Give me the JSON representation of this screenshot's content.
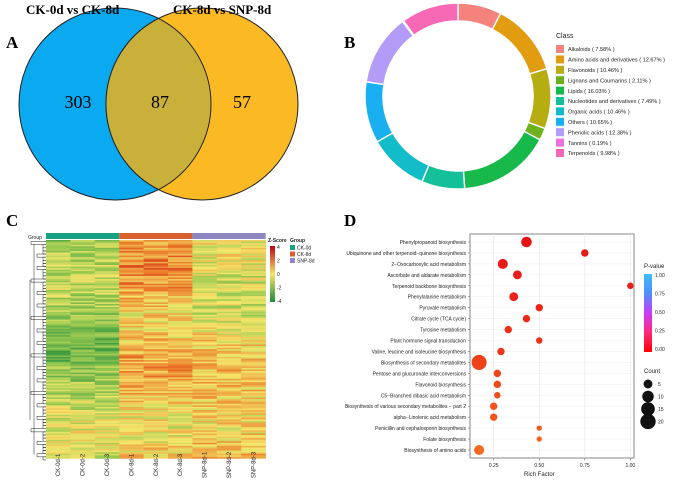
{
  "panels": {
    "a": "A",
    "b": "B",
    "c": "C",
    "d": "D"
  },
  "chart_data": [
    {
      "type": "venn",
      "sets": [
        {
          "name": "CK-0d vs CK-8d",
          "only": 303,
          "color": "#0aa9f0"
        },
        {
          "name": "CK-8d vs SNP-8d",
          "only": 57,
          "color": "#fbb924"
        }
      ],
      "intersection": 87,
      "intersection_color": "#c9b03a"
    },
    {
      "type": "pie",
      "style": "donut",
      "legend_title": "Class",
      "slices": [
        {
          "label": "Alkaloids ( 7.58% )",
          "value": 7.58,
          "color": "#f4837d"
        },
        {
          "label": "Amino acids and derivatives ( 12.67% )",
          "value": 12.67,
          "color": "#e29c10"
        },
        {
          "label": "Flavonoids ( 10.46% )",
          "value": 10.46,
          "color": "#b7ac11"
        },
        {
          "label": "Lignans and Coumarins ( 2.11% )",
          "value": 2.11,
          "color": "#6db21c"
        },
        {
          "label": "Lipids ( 16.03% )",
          "value": 16.03,
          "color": "#18b94b"
        },
        {
          "label": "Nucleotides and derivatives ( 7.49% )",
          "value": 7.49,
          "color": "#13c09a"
        },
        {
          "label": "Organic acids ( 10.46% )",
          "value": 10.46,
          "color": "#13bcc9"
        },
        {
          "label": "Others ( 10.65% )",
          "value": 10.65,
          "color": "#18b0f0"
        },
        {
          "label": "Phenolic acids ( 12.38% )",
          "value": 12.38,
          "color": "#b39cf7"
        },
        {
          "label": "Tannins ( 0.19% )",
          "value": 0.19,
          "color": "#ed6ee1"
        },
        {
          "label": "Terpenoids ( 9.98% )",
          "value": 9.98,
          "color": "#f769b5"
        }
      ]
    },
    {
      "type": "heatmap",
      "legend_title": "Z-Score",
      "group_label": "Group",
      "color_scale": {
        "ticks": [
          "4",
          "2",
          "0",
          "-2",
          "-4"
        ],
        "colors": [
          "#c10015",
          "#f4e66a",
          "#1e8a3c"
        ]
      },
      "groups": [
        {
          "name": "CK-0d",
          "color": "#16a084"
        },
        {
          "name": "CK-8d",
          "color": "#d9602c"
        },
        {
          "name": "SNP-8d",
          "color": "#8e86c0"
        }
      ],
      "columns": [
        "CK-0d-1",
        "CK-0d-2",
        "CK-0d-3",
        "CK-8d-1",
        "CK-8d-2",
        "CK-8d-3",
        "SNP-8d-1",
        "SNP-8d-2",
        "SNP-8d-3"
      ]
    },
    {
      "type": "scatter",
      "xlabel": "Rich Factor",
      "xticks": [
        0.25,
        0.5,
        0.75,
        1.0
      ],
      "xtick_labels": [
        "0.25",
        "0.50",
        "0.75",
        "1.00"
      ],
      "xlim": [
        0.12,
        1.02
      ],
      "color_legend_title": "P-value",
      "color_ticks": [
        "1.00",
        "0.75",
        "0.50",
        "0.25",
        "0.00"
      ],
      "size_legend_title": "Count",
      "size_ticks": [
        "5",
        "10",
        "15",
        "20"
      ],
      "points": [
        {
          "label": "Phenylpropanoid biosynthesis",
          "x": 0.43,
          "count": 8,
          "p": 0.0
        },
        {
          "label": "Ubiquinone and other terpenoid−quinone biosynthesis",
          "x": 0.75,
          "count": 3,
          "p": 0.02
        },
        {
          "label": "2−Oxocarboxylic acid metabolism",
          "x": 0.3,
          "count": 7,
          "p": 0.03
        },
        {
          "label": "Ascorbate and aldarate metabolism",
          "x": 0.38,
          "count": 5,
          "p": 0.04
        },
        {
          "label": "Terpenoid backbone biosynthesis",
          "x": 1.0,
          "count": 2,
          "p": 0.05
        },
        {
          "label": "Phenylalanine metabolism",
          "x": 0.36,
          "count": 5,
          "p": 0.06
        },
        {
          "label": "Pyruvate metabolism",
          "x": 0.5,
          "count": 3,
          "p": 0.08
        },
        {
          "label": "Citrate cycle (TCA cycle)",
          "x": 0.43,
          "count": 3,
          "p": 0.1
        },
        {
          "label": "Tyrosine metabolism",
          "x": 0.33,
          "count": 3,
          "p": 0.12
        },
        {
          "label": "Plant hormone signal transduction",
          "x": 0.5,
          "count": 2,
          "p": 0.14
        },
        {
          "label": "Valine, leucine and isoleucine biosynthesis",
          "x": 0.29,
          "count": 3,
          "p": 0.16
        },
        {
          "label": "Biosynthesis of secondary metabolites",
          "x": 0.17,
          "count": 19,
          "p": 0.2
        },
        {
          "label": "Pentose and glucuronate interconversions",
          "x": 0.27,
          "count": 3,
          "p": 0.22
        },
        {
          "label": "Flavonoid biosynthesis",
          "x": 0.27,
          "count": 3,
          "p": 0.24
        },
        {
          "label": "C5−Branched dibasic acid metabolism",
          "x": 0.27,
          "count": 2,
          "p": 0.26
        },
        {
          "label": "Biosynthesis of various secondary metabolites − part 2",
          "x": 0.25,
          "count": 3,
          "p": 0.28
        },
        {
          "label": "alpha−Linolenic acid metabolism",
          "x": 0.25,
          "count": 3,
          "p": 0.3
        },
        {
          "label": "Penicillin and cephalosporin biosynthesis",
          "x": 0.5,
          "count": 1,
          "p": 0.32
        },
        {
          "label": "Folate biosynthesis",
          "x": 0.5,
          "count": 1,
          "p": 0.34
        },
        {
          "label": "Biosynthesis of amino acids",
          "x": 0.17,
          "count": 7,
          "p": 0.38
        }
      ]
    }
  ]
}
